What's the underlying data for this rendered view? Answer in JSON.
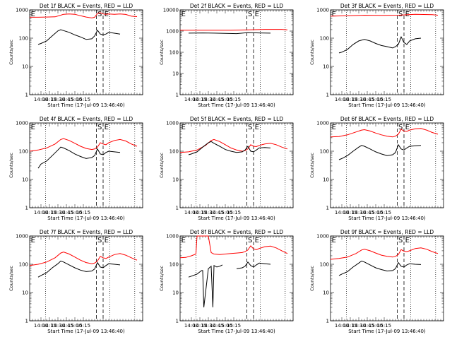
{
  "chart_data": [
    {
      "type": "line",
      "title": "Det 1f BLACK = Events, RED = LLD",
      "xlabel": "Start Time (17-Jul-09 13:46:40)",
      "ylabel": "Counts/sec",
      "yscale": "log",
      "ylim": [
        1,
        1000
      ],
      "x_ticks": [
        "14:00",
        "14:15",
        "14:30",
        "14:45",
        "15:00",
        "15:15"
      ],
      "y_ticks": [
        "1",
        "10",
        "100",
        "1000"
      ],
      "markers": [
        "E",
        "S",
        "E"
      ],
      "series": [
        {
          "name": "RED",
          "color": "#ff0000",
          "x": [
            0,
            15,
            30,
            45,
            55,
            60,
            70,
            80,
            90,
            100,
            110,
            115,
            120,
            125,
            130,
            135,
            140,
            150,
            160,
            170,
            180,
            190
          ],
          "values": [
            550,
            550,
            560,
            570,
            650,
            700,
            720,
            700,
            620,
            560,
            520,
            550,
            750,
            800,
            720,
            700,
            720,
            700,
            720,
            690,
            600,
            580
          ]
        },
        {
          "name": "BLACK",
          "color": "#000000",
          "x": [
            15,
            20,
            30,
            40,
            50,
            55,
            60,
            70,
            80,
            90,
            100,
            110,
            115,
            120,
            125,
            130,
            135,
            140,
            150,
            160
          ],
          "values": [
            60,
            65,
            80,
            120,
            180,
            200,
            185,
            160,
            130,
            110,
            90,
            95,
            120,
            190,
            140,
            130,
            140,
            160,
            150,
            140
          ]
        }
      ]
    },
    {
      "type": "line",
      "title": "Det 2f BLACK = Events, RED = LLD",
      "xlabel": "Start Time (17-Jul-09 13:46:40)",
      "ylabel": "Counts/sec",
      "yscale": "log",
      "ylim": [
        1,
        10000
      ],
      "x_ticks": [
        "14:00",
        "14:15",
        "14:30",
        "14:45",
        "15:00",
        "15:15"
      ],
      "y_ticks": [
        "1",
        "10",
        "100",
        "1000",
        "10000"
      ],
      "markers": [
        "E",
        "S",
        "E"
      ],
      "series": [
        {
          "name": "RED",
          "color": "#ff0000",
          "x": [
            0,
            30,
            60,
            90,
            120,
            150,
            180,
            190
          ],
          "values": [
            1100,
            1100,
            1100,
            1100,
            1150,
            1200,
            1200,
            1150
          ]
        },
        {
          "name": "BLACK",
          "color": "#000000",
          "x": [
            15,
            40,
            60,
            80,
            100,
            120,
            140,
            160
          ],
          "values": [
            800,
            820,
            800,
            780,
            760,
            850,
            820,
            800
          ]
        }
      ]
    },
    {
      "type": "line",
      "title": "Det 3f BLACK = Events, RED = LLD",
      "xlabel": "Start Time (17-Jul-09 13:46:40)",
      "ylabel": "Counts/sec",
      "yscale": "log",
      "ylim": [
        1,
        1000
      ],
      "x_ticks": [
        "14:00",
        "14:15",
        "14:30",
        "14:45",
        "15:00",
        "15:15"
      ],
      "y_ticks": [
        "1",
        "10",
        "100",
        "1000"
      ],
      "markers": [
        "E",
        "S",
        "E"
      ],
      "series": [
        {
          "name": "RED",
          "color": "#ff0000",
          "x": [
            0,
            30,
            60,
            90,
            120,
            150,
            180,
            190
          ],
          "values": [
            600,
            620,
            650,
            640,
            650,
            700,
            680,
            650
          ]
        },
        {
          "name": "BLACK",
          "color": "#000000",
          "x": [
            15,
            20,
            30,
            40,
            50,
            60,
            70,
            80,
            90,
            100,
            110,
            115,
            120,
            125,
            130,
            135,
            140,
            150,
            160
          ],
          "values": [
            30,
            32,
            40,
            60,
            80,
            90,
            80,
            65,
            55,
            50,
            45,
            50,
            60,
            110,
            70,
            60,
            80,
            95,
            100
          ]
        }
      ]
    },
    {
      "type": "line",
      "title": "Det 4f BLACK = Events, RED = LLD",
      "xlabel": "Start Time (17-Jul-09 13:46:40)",
      "ylabel": "Counts/sec",
      "yscale": "log",
      "ylim": [
        1,
        1000
      ],
      "x_ticks": [
        "14:00",
        "14:15",
        "14:30",
        "14:45",
        "15:00",
        "15:15"
      ],
      "y_ticks": [
        "1",
        "10",
        "100",
        "1000"
      ],
      "markers": [
        "E",
        "S",
        "E"
      ],
      "series": [
        {
          "name": "RED",
          "color": "#ff0000",
          "x": [
            0,
            15,
            30,
            45,
            55,
            60,
            70,
            80,
            90,
            100,
            110,
            115,
            120,
            125,
            130,
            135,
            140,
            150,
            160,
            170,
            180,
            190
          ],
          "values": [
            100,
            110,
            130,
            180,
            260,
            280,
            240,
            190,
            150,
            125,
            115,
            120,
            140,
            200,
            180,
            170,
            200,
            240,
            260,
            230,
            180,
            150
          ]
        },
        {
          "name": "BLACK",
          "color": "#000000",
          "x": [
            15,
            20,
            30,
            40,
            50,
            55,
            60,
            70,
            80,
            90,
            100,
            110,
            115,
            120,
            125,
            130,
            135,
            140,
            150,
            160
          ],
          "values": [
            25,
            35,
            45,
            70,
            110,
            140,
            130,
            105,
            80,
            65,
            55,
            60,
            70,
            120,
            80,
            75,
            90,
            100,
            95,
            90
          ]
        }
      ]
    },
    {
      "type": "line",
      "title": "Det 5f BLACK = Events, RED = LLD",
      "xlabel": "Start Time (17-Jul-09 13:46:40)",
      "ylabel": "Counts/sec",
      "yscale": "log",
      "ylim": [
        1,
        1000
      ],
      "x_ticks": [
        "14:00",
        "14:15",
        "14:30",
        "14:45",
        "15:00",
        "15:15"
      ],
      "y_ticks": [
        "1",
        "10",
        "100",
        "1000"
      ],
      "markers": [
        "E",
        "S",
        "E"
      ],
      "series": [
        {
          "name": "RED",
          "color": "#ff0000",
          "x": [
            0,
            15,
            30,
            45,
            55,
            60,
            70,
            80,
            90,
            100,
            110,
            115,
            120,
            125,
            130,
            135,
            140,
            150,
            160,
            170,
            180,
            190
          ],
          "values": [
            90,
            95,
            110,
            160,
            240,
            260,
            220,
            170,
            130,
            110,
            100,
            105,
            120,
            170,
            150,
            145,
            160,
            180,
            190,
            170,
            140,
            120
          ]
        },
        {
          "name": "BLACK",
          "color": "#000000",
          "x": [
            15,
            20,
            30,
            40,
            50,
            55,
            60,
            70,
            80,
            90,
            100,
            110,
            115,
            120,
            125,
            130,
            135,
            140,
            150,
            160
          ],
          "values": [
            75,
            80,
            95,
            140,
            200,
            220,
            190,
            150,
            115,
            100,
            90,
            95,
            110,
            150,
            100,
            95,
            110,
            130,
            135,
            130
          ]
        }
      ]
    },
    {
      "type": "line",
      "title": "Det 6f BLACK = Events, RED = LLD",
      "xlabel": "Start Time (17-Jul-09 13:46:40)",
      "ylabel": "Counts/sec",
      "yscale": "log",
      "ylim": [
        1,
        1000
      ],
      "x_ticks": [
        "14:00",
        "14:15",
        "14:30",
        "14:45",
        "15:00",
        "15:15"
      ],
      "y_ticks": [
        "1",
        "10",
        "100",
        "1000"
      ],
      "markers": [
        "E",
        "S",
        "E"
      ],
      "series": [
        {
          "name": "RED",
          "color": "#ff0000",
          "x": [
            0,
            15,
            30,
            45,
            55,
            60,
            70,
            80,
            90,
            100,
            110,
            115,
            120,
            125,
            130,
            135,
            140,
            150,
            160,
            170,
            180,
            190
          ],
          "values": [
            320,
            330,
            380,
            480,
            560,
            580,
            520,
            440,
            380,
            340,
            320,
            340,
            400,
            600,
            520,
            500,
            560,
            620,
            640,
            560,
            460,
            400
          ]
        },
        {
          "name": "BLACK",
          "color": "#000000",
          "x": [
            15,
            20,
            30,
            40,
            50,
            55,
            60,
            70,
            80,
            90,
            100,
            110,
            115,
            120,
            125,
            130,
            135,
            140,
            150,
            160
          ],
          "values": [
            50,
            55,
            70,
            100,
            140,
            160,
            150,
            120,
            95,
            80,
            70,
            75,
            90,
            170,
            120,
            110,
            130,
            150,
            155,
            160
          ]
        }
      ]
    },
    {
      "type": "line",
      "title": "Det 7f BLACK = Events, RED = LLD",
      "xlabel": "Start Time (17-Jul-09 13:46:40)",
      "ylabel": "Counts/sec",
      "yscale": "log",
      "ylim": [
        1,
        1000
      ],
      "x_ticks": [
        "14:00",
        "14:15",
        "14:30",
        "14:45",
        "15:00",
        "15:15"
      ],
      "y_ticks": [
        "1",
        "10",
        "100",
        "1000"
      ],
      "markers": [
        "E",
        "S",
        "E"
      ],
      "series": [
        {
          "name": "RED",
          "color": "#ff0000",
          "x": [
            0,
            15,
            30,
            45,
            55,
            60,
            70,
            80,
            90,
            100,
            110,
            115,
            120,
            125,
            130,
            135,
            140,
            150,
            160,
            170,
            180,
            190
          ],
          "values": [
            90,
            100,
            120,
            170,
            250,
            270,
            230,
            180,
            140,
            115,
            105,
            110,
            130,
            190,
            170,
            160,
            180,
            220,
            240,
            210,
            170,
            140
          ]
        },
        {
          "name": "BLACK",
          "color": "#000000",
          "x": [
            15,
            20,
            30,
            40,
            50,
            55,
            60,
            70,
            80,
            90,
            100,
            110,
            115,
            120,
            125,
            130,
            135,
            140,
            150,
            160
          ],
          "values": [
            35,
            40,
            50,
            75,
            105,
            130,
            120,
            95,
            75,
            62,
            55,
            58,
            68,
            115,
            80,
            75,
            90,
            105,
            100,
            95
          ]
        }
      ]
    },
    {
      "type": "line",
      "title": "Det 8f BLACK = Events, RED = LLD",
      "xlabel": "Start Time (17-Jul-09 13:46:40)",
      "ylabel": "Counts/sec",
      "yscale": "log",
      "ylim": [
        1,
        1000
      ],
      "x_ticks": [
        "14:00",
        "14:15",
        "14:30",
        "14:45",
        "15:00",
        "15:15"
      ],
      "y_ticks": [
        "1",
        "10",
        "100",
        "1000"
      ],
      "markers": [
        "E",
        "S",
        "E"
      ],
      "series": [
        {
          "name": "RED",
          "color": "#ff0000",
          "x": [
            0,
            10,
            20,
            28,
            30,
            40,
            50,
            55,
            58,
            60,
            70,
            80,
            90,
            100,
            110,
            115,
            120,
            125,
            130,
            135,
            140,
            150,
            160,
            170,
            180,
            190
          ],
          "values": [
            170,
            175,
            200,
            230,
            1000,
            1000,
            1000,
            260,
            240,
            230,
            220,
            230,
            240,
            250,
            260,
            280,
            320,
            450,
            350,
            330,
            360,
            420,
            440,
            380,
            300,
            240
          ]
        },
        {
          "name": "BLACK",
          "color": "#000000",
          "x": [
            15,
            20,
            30,
            38,
            40,
            42,
            50,
            55,
            58,
            60,
            65,
            70,
            75
          ],
          "values": [
            35,
            38,
            45,
            60,
            60,
            3,
            70,
            85,
            3,
            90,
            80,
            85,
            95
          ]
        },
        {
          "name": "BLACK-2",
          "color": "#000000",
          "x": [
            100,
            110,
            115,
            120,
            125,
            130,
            135,
            140,
            150,
            160
          ],
          "values": [
            70,
            75,
            85,
            120,
            90,
            80,
            95,
            110,
            105,
            100
          ]
        }
      ]
    },
    {
      "type": "line",
      "title": "Det 9f BLACK = Events, RED = LLD",
      "xlabel": "Start Time (17-Jul-09 13:46:40)",
      "ylabel": "Counts/sec",
      "yscale": "log",
      "ylim": [
        1,
        1000
      ],
      "x_ticks": [
        "14:00",
        "14:15",
        "14:30",
        "14:45",
        "15:00",
        "15:15"
      ],
      "y_ticks": [
        "1",
        "10",
        "100",
        "1000"
      ],
      "markers": [
        "E",
        "S",
        "E"
      ],
      "series": [
        {
          "name": "RED",
          "color": "#ff0000",
          "x": [
            0,
            15,
            30,
            45,
            55,
            60,
            70,
            80,
            90,
            100,
            110,
            115,
            120,
            125,
            130,
            135,
            140,
            150,
            160,
            170,
            180,
            190
          ],
          "values": [
            150,
            160,
            180,
            240,
            320,
            340,
            300,
            250,
            210,
            190,
            180,
            190,
            220,
            330,
            290,
            280,
            300,
            360,
            380,
            340,
            280,
            240
          ]
        },
        {
          "name": "BLACK",
          "color": "#000000",
          "x": [
            15,
            20,
            30,
            40,
            50,
            55,
            60,
            70,
            80,
            90,
            100,
            110,
            115,
            120,
            125,
            130,
            135,
            140,
            150,
            160
          ],
          "values": [
            40,
            45,
            55,
            80,
            110,
            130,
            120,
            95,
            75,
            65,
            58,
            60,
            70,
            115,
            85,
            80,
            95,
            105,
            100,
            98
          ]
        }
      ]
    }
  ]
}
